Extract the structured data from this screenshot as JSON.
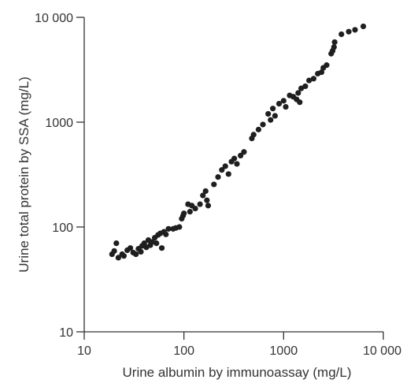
{
  "chart_data": {
    "type": "scatter",
    "xlabel": "Urine albumin by immunoassay (mg/L)",
    "ylabel": "Urine total protein by SSA (mg/L)",
    "x_scale": "log",
    "y_scale": "log",
    "xlim": [
      10,
      10000
    ],
    "ylim": [
      10,
      10000
    ],
    "x_ticks": [
      {
        "value": 10,
        "label": "10"
      },
      {
        "value": 100,
        "label": "100"
      },
      {
        "value": 1000,
        "label": "1000"
      },
      {
        "value": 10000,
        "label": "10 000"
      }
    ],
    "y_ticks": [
      {
        "value": 10,
        "label": "10"
      },
      {
        "value": 100,
        "label": "100"
      },
      {
        "value": 1000,
        "label": "1000"
      },
      {
        "value": 10000,
        "label": "10 000"
      }
    ],
    "grid": false,
    "marker_color": "#1f1f1f",
    "axis_color": "#333333",
    "series": [
      {
        "points": [
          [
            19,
            55
          ],
          [
            20,
            59
          ],
          [
            21,
            70
          ],
          [
            22,
            51
          ],
          [
            24,
            55
          ],
          [
            25,
            53
          ],
          [
            27,
            60
          ],
          [
            29,
            63
          ],
          [
            31,
            57
          ],
          [
            33,
            55
          ],
          [
            35,
            62
          ],
          [
            37,
            58
          ],
          [
            38,
            66
          ],
          [
            40,
            70
          ],
          [
            42,
            64
          ],
          [
            44,
            75
          ],
          [
            46,
            67
          ],
          [
            48,
            72
          ],
          [
            51,
            79
          ],
          [
            53,
            70
          ],
          [
            55,
            84
          ],
          [
            58,
            87
          ],
          [
            60,
            63
          ],
          [
            63,
            90
          ],
          [
            66,
            85
          ],
          [
            70,
            96
          ],
          [
            78,
            96
          ],
          [
            83,
            98
          ],
          [
            90,
            100
          ],
          [
            95,
            120
          ],
          [
            98,
            128
          ],
          [
            100,
            135
          ],
          [
            110,
            165
          ],
          [
            115,
            140
          ],
          [
            120,
            160
          ],
          [
            130,
            150
          ],
          [
            145,
            165
          ],
          [
            155,
            200
          ],
          [
            165,
            220
          ],
          [
            170,
            180
          ],
          [
            175,
            160
          ],
          [
            200,
            255
          ],
          [
            220,
            300
          ],
          [
            240,
            350
          ],
          [
            260,
            380
          ],
          [
            280,
            320
          ],
          [
            300,
            420
          ],
          [
            320,
            450
          ],
          [
            340,
            400
          ],
          [
            370,
            480
          ],
          [
            400,
            520
          ],
          [
            480,
            700
          ],
          [
            500,
            760
          ],
          [
            560,
            850
          ],
          [
            620,
            950
          ],
          [
            700,
            1200
          ],
          [
            740,
            1050
          ],
          [
            780,
            1350
          ],
          [
            820,
            1150
          ],
          [
            900,
            1500
          ],
          [
            1000,
            1600
          ],
          [
            1050,
            1400
          ],
          [
            1150,
            1800
          ],
          [
            1250,
            1750
          ],
          [
            1350,
            1650
          ],
          [
            1400,
            1900
          ],
          [
            1450,
            1550
          ],
          [
            1500,
            2100
          ],
          [
            1650,
            2200
          ],
          [
            1800,
            2500
          ],
          [
            2000,
            2600
          ],
          [
            2200,
            2900
          ],
          [
            2400,
            3000
          ],
          [
            2500,
            3300
          ],
          [
            2700,
            3500
          ],
          [
            3000,
            4500
          ],
          [
            3100,
            4800
          ],
          [
            3200,
            5200
          ],
          [
            3250,
            5800
          ],
          [
            3800,
            6900
          ],
          [
            4500,
            7300
          ],
          [
            5200,
            7600
          ],
          [
            6300,
            8200
          ]
        ]
      }
    ]
  }
}
